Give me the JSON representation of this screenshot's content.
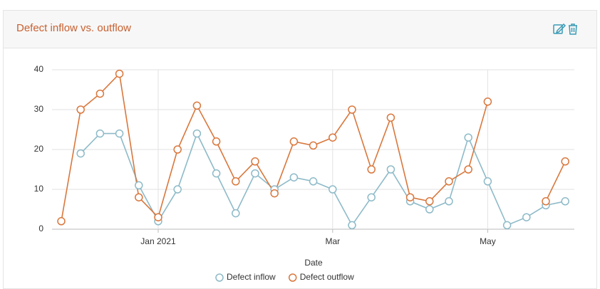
{
  "chart_data": {
    "type": "line",
    "title": "Defect inflow vs. outflow",
    "x_label": "Date",
    "categories": [
      null,
      null,
      null,
      null,
      null,
      "Jan 2021",
      null,
      null,
      null,
      null,
      null,
      null,
      null,
      null,
      "Mar",
      null,
      null,
      null,
      null,
      null,
      null,
      null,
      "May",
      null,
      null,
      null,
      null
    ],
    "series": [
      {
        "name": "Defect inflow",
        "color": "#8dbac8",
        "values": [
          null,
          19,
          24,
          24,
          11,
          2,
          10,
          24,
          14,
          4,
          14,
          10,
          13,
          12,
          10,
          1,
          8,
          15,
          7,
          5,
          7,
          23,
          12,
          1,
          3,
          6,
          7
        ]
      },
      {
        "name": "Defect outflow",
        "color": "#d9773c",
        "values": [
          2,
          30,
          34,
          39,
          8,
          3,
          20,
          31,
          22,
          12,
          17,
          9,
          22,
          21,
          23,
          30,
          15,
          28,
          8,
          7,
          12,
          15,
          32,
          null,
          null,
          7,
          17
        ]
      }
    ],
    "ylim": [
      0,
      40
    ],
    "yticks": [
      0,
      10,
      20,
      30,
      40
    ],
    "grid": true
  }
}
